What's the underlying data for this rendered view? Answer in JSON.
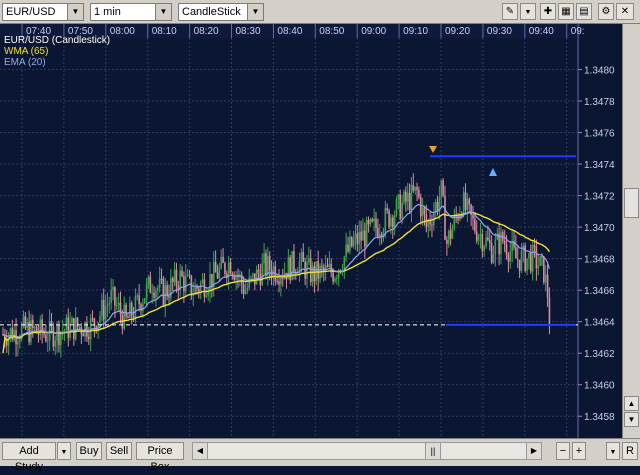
{
  "toolbar": {
    "symbol": "EUR/USD",
    "interval": "1 min",
    "chart_type": "CandleStick"
  },
  "legend": {
    "instrument": "EUR/USD (Candlestick)",
    "wma": "WMA (65)",
    "ema": "EMA (20)"
  },
  "time_labels": [
    "07:40",
    "07:50",
    "08:00",
    "08:10",
    "08:20",
    "08:30",
    "08:40",
    "08:50",
    "09:00",
    "09:10",
    "09:20",
    "09:30",
    "09:40",
    "09:"
  ],
  "price_labels": [
    "1.3480",
    "1.3478",
    "1.3476",
    "1.3474",
    "1.3472",
    "1.3470",
    "1.3468",
    "1.3466",
    "1.3464",
    "1.3462",
    "1.3460",
    "1.3458"
  ],
  "colors": {
    "background": "#0b1633",
    "grid": "#2a3a6a",
    "bull": "#3fa34a",
    "bear": "#d98aa0",
    "wma": "#f0e030",
    "ema": "#8ea8e8",
    "hline": "#1f3cff"
  },
  "bottom": {
    "add_study": "Add Study",
    "buy": "Buy",
    "sell": "Sell",
    "price_box": "Price Box",
    "r_label": "R"
  },
  "chart_data": {
    "type": "candlestick",
    "x_labels": [
      "07:40",
      "07:50",
      "08:00",
      "08:10",
      "08:20",
      "08:30",
      "08:40",
      "08:50",
      "09:00",
      "09:10",
      "09:20",
      "09:30",
      "09:40"
    ],
    "ylim": [
      1.3457,
      1.3482
    ],
    "current_price": 1.34638,
    "horizontal_lines": [
      1.34745,
      1.34638
    ],
    "series": [
      {
        "name": "WMA (65)"
      },
      {
        "name": "EMA (20)"
      }
    ]
  }
}
